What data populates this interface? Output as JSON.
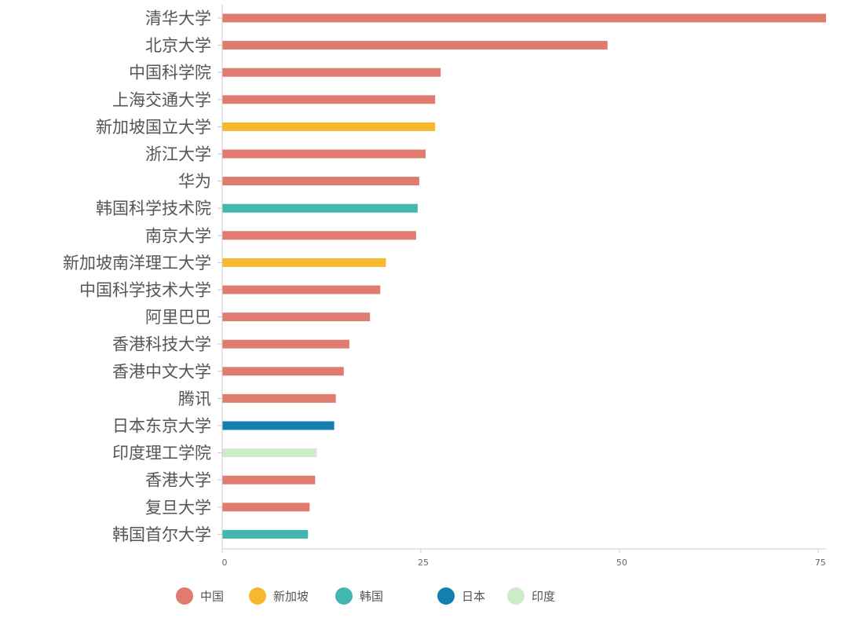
{
  "chart_data": {
    "type": "bar",
    "orientation": "horizontal",
    "title": "",
    "xlabel": "",
    "ylabel": "",
    "xlim": [
      0,
      76
    ],
    "x_ticks": [
      0,
      25,
      50,
      75
    ],
    "grid": false,
    "legend_position": "bottom",
    "legend": [
      {
        "name": "中国",
        "color": "#e07b6f"
      },
      {
        "name": "新加坡",
        "color": "#f5b82e"
      },
      {
        "name": "韩国",
        "color": "#45b5b2"
      },
      {
        "name": "日本",
        "color": "#1580b0"
      },
      {
        "name": "印度",
        "color": "#cdebc9"
      }
    ],
    "categories": [
      "清华大学",
      "北京大学",
      "中国科学院",
      "上海交通大学",
      "新加坡国立大学",
      "浙江大学",
      "华为",
      "韩国科学技术院",
      "南京大学",
      "新加坡南洋理工大学",
      "中国科学技术大学",
      "阿里巴巴",
      "香港科技大学",
      "香港中文大学",
      "腾讯",
      "日本东京大学",
      "印度理工学院",
      "香港大学",
      "复旦大学",
      "韩国首尔大学"
    ],
    "values": [
      76,
      48.5,
      27.5,
      26.8,
      26.8,
      25.6,
      24.8,
      24.6,
      24.4,
      20.6,
      19.9,
      18.6,
      16,
      15.3,
      14.3,
      14.1,
      11.9,
      11.7,
      11,
      10.8
    ],
    "groups": [
      "中国",
      "中国",
      "中国",
      "中国",
      "新加坡",
      "中国",
      "中国",
      "韩国",
      "中国",
      "新加坡",
      "中国",
      "中国",
      "中国",
      "中国",
      "中国",
      "日本",
      "印度",
      "中国",
      "中国",
      "韩国"
    ]
  }
}
